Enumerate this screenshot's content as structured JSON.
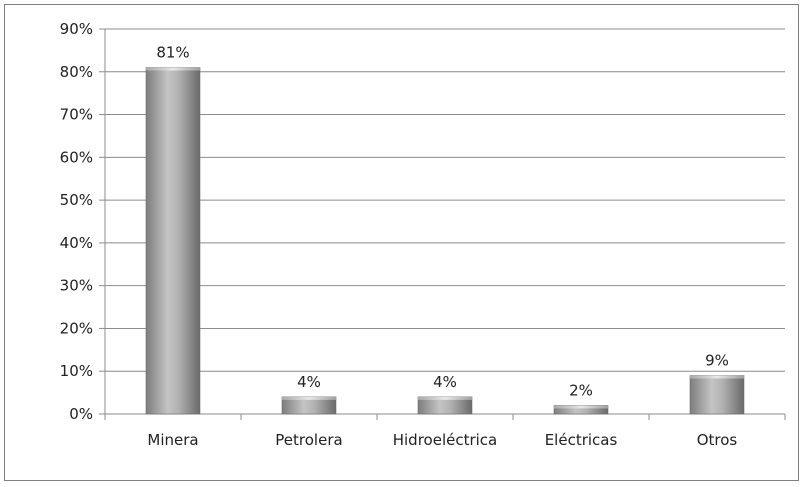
{
  "chart_data": {
    "type": "bar",
    "categories": [
      "Minera",
      "Petrolera",
      "Hidroeléctrica",
      "Eléctricas",
      "Otros"
    ],
    "values": [
      81,
      4,
      4,
      2,
      9
    ],
    "value_labels": [
      "81%",
      "4%",
      "4%",
      "2%",
      "9%"
    ],
    "ylim": [
      0,
      90
    ],
    "yticks": [
      0,
      10,
      20,
      30,
      40,
      50,
      60,
      70,
      80,
      90
    ],
    "ytick_labels": [
      "0%",
      "10%",
      "20%",
      "30%",
      "40%",
      "50%",
      "60%",
      "70%",
      "80%",
      "90%"
    ],
    "grid": true,
    "bar_color": "#9b9b9b"
  }
}
